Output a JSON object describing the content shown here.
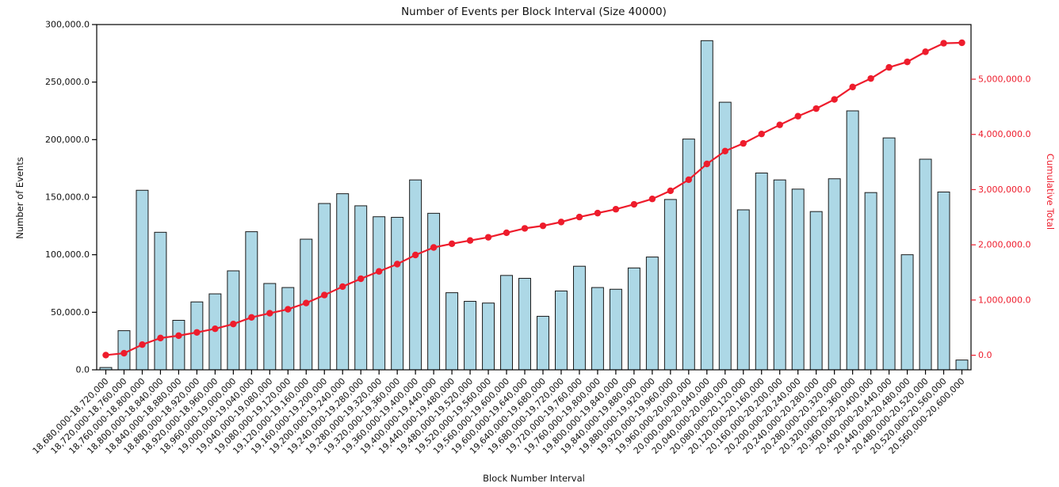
{
  "chart_data": {
    "type": "bar",
    "title": "Number of Events per Block Interval (Size 40000)",
    "grid": false,
    "legend": "none",
    "x_axis": {
      "label": "Block Number Interval",
      "tick_rotation": -45
    },
    "left_axis": {
      "label": "Number of Events",
      "lim": [
        0,
        300000
      ],
      "tick_values": [
        0,
        50000,
        100000,
        150000,
        200000,
        250000,
        300000
      ],
      "tick_labels": [
        "0.0",
        "50,000.0",
        "100,000.0",
        "150,000.0",
        "200,000.0",
        "250,000.0",
        "300,000.0"
      ],
      "color": "#111111"
    },
    "right_axis": {
      "label": "Cumulative Total",
      "lim": [
        -264000,
        5990000
      ],
      "tick_values": [
        0,
        1000000,
        2000000,
        3000000,
        4000000,
        5000000
      ],
      "tick_labels": [
        "0.0",
        "1,000,000.0",
        "2,000,000.0",
        "3,000,000.0",
        "4,000,000.0",
        "5,000,000.0"
      ],
      "color": "#ee1c2c"
    },
    "categories": [
      "18,680,000-18,720,000",
      "18,720,000-18,760,000",
      "18,760,000-18,800,000",
      "18,800,000-18,840,000",
      "18,840,000-18,880,000",
      "18,880,000-18,920,000",
      "18,920,000-18,960,000",
      "18,960,000-19,000,000",
      "19,000,000-19,040,000",
      "19,040,000-19,080,000",
      "19,080,000-19,120,000",
      "19,120,000-19,160,000",
      "19,160,000-19,200,000",
      "19,200,000-19,240,000",
      "19,240,000-19,280,000",
      "19,280,000-19,320,000",
      "19,320,000-19,360,000",
      "19,360,000-19,400,000",
      "19,400,000-19,440,000",
      "19,440,000-19,480,000",
      "19,480,000-19,520,000",
      "19,520,000-19,560,000",
      "19,560,000-19,600,000",
      "19,600,000-19,640,000",
      "19,640,000-19,680,000",
      "19,680,000-19,720,000",
      "19,720,000-19,760,000",
      "19,760,000-19,800,000",
      "19,800,000-19,840,000",
      "19,840,000-19,880,000",
      "19,880,000-19,920,000",
      "19,920,000-19,960,000",
      "19,960,000-20,000,000",
      "20,000,000-20,040,000",
      "20,040,000-20,080,000",
      "20,080,000-20,120,000",
      "20,120,000-20,160,000",
      "20,160,000-20,200,000",
      "20,200,000-20,240,000",
      "20,240,000-20,280,000",
      "20,280,000-20,320,000",
      "20,320,000-20,360,000",
      "20,360,000-20,400,000",
      "20,400,000-20,440,000",
      "20,440,000-20,480,000",
      "20,480,000-20,520,000",
      "20,520,000-20,560,000",
      "20,560,000-20,600,000"
    ],
    "series": [
      {
        "name": "Number of Events",
        "type": "bar",
        "axis": "left",
        "color": "#ADD8E6",
        "edge_color": "#1a1a1a",
        "values": [
          2000,
          34000,
          156000,
          119500,
          43000,
          59000,
          66000,
          86000,
          120000,
          75000,
          71500,
          113500,
          144500,
          153000,
          142500,
          133000,
          132500,
          165000,
          136000,
          67000,
          59500,
          58000,
          82000,
          79500,
          46500,
          68500,
          90000,
          71500,
          70000,
          88500,
          98000,
          148000,
          200500,
          286000,
          232500,
          139000,
          171000,
          165000,
          157000,
          137500,
          166000,
          225000,
          154000,
          201500,
          100000,
          183000,
          154500,
          8500
        ]
      },
      {
        "name": "Cumulative Total",
        "type": "line",
        "axis": "right",
        "color": "#ee1c2c",
        "marker": "circle",
        "values": [
          2000,
          36000,
          192000,
          311500,
          354500,
          413500,
          479500,
          565500,
          685500,
          760500,
          832000,
          945500,
          1090000,
          1243000,
          1385500,
          1518500,
          1651000,
          1816000,
          1952000,
          2019000,
          2078500,
          2136500,
          2218500,
          2298000,
          2344500,
          2413000,
          2503000,
          2574500,
          2644500,
          2733000,
          2831000,
          2979000,
          3179500,
          3465500,
          3698000,
          3837000,
          4008000,
          4173000,
          4330000,
          4467500,
          4633500,
          4858500,
          5012500,
          5214000,
          5314000,
          5497000,
          5651500,
          5660000
        ]
      }
    ]
  }
}
